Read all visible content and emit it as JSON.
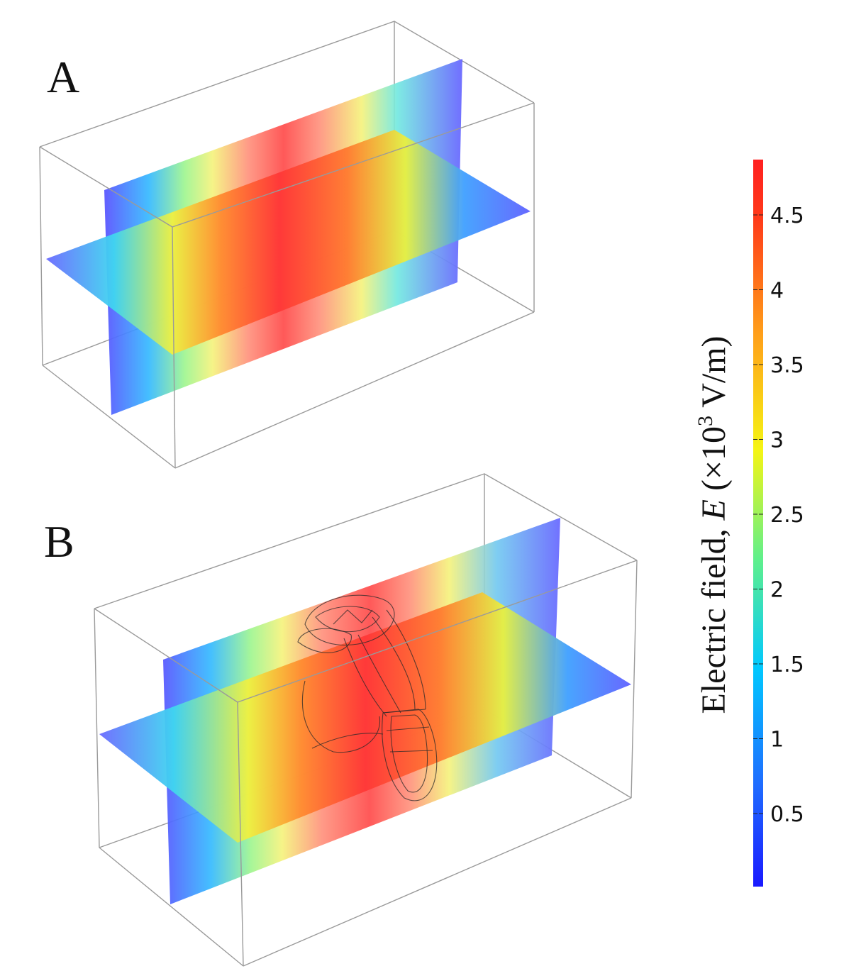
{
  "panels": [
    {
      "label": "A"
    },
    {
      "label": "B"
    }
  ],
  "colorbar": {
    "title": "Electric field, ",
    "title_symbol": "E",
    "title_units": " (×10",
    "title_exp": "3",
    "title_units_end": " V/m)",
    "ticks": [
      "4.5",
      "4",
      "3.5",
      "3",
      "2.5",
      "2",
      "1.5",
      "1",
      "0.5"
    ],
    "colormap": [
      "#1a1aff",
      "#1f6cff",
      "#00c8ff",
      "#5ff08c",
      "#f5f514",
      "#ff9f1a",
      "#ff3a1a",
      "#ff2020"
    ]
  }
}
